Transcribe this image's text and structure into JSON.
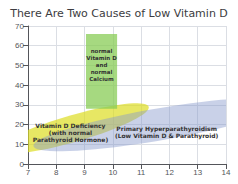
{
  "chart_data": {
    "type": "region",
    "title": "There Are Two Causes of Low Vitamin D",
    "xlim": [
      7,
      14
    ],
    "ylim": [
      0,
      70
    ],
    "xticks": [
      7,
      8,
      9,
      10,
      11,
      12,
      13,
      14
    ],
    "yticks": [
      0,
      10,
      20,
      30,
      40,
      50,
      60,
      70
    ],
    "grid": true,
    "regions": [
      {
        "shape": "ellipse",
        "x": 8.6,
        "y": 18,
        "width": 2.9,
        "height": 26,
        "color": "#dddd22",
        "label": "Vitamin D Deficiency\n(with normal\nParathyroid Hormone)"
      },
      {
        "shape": "ellipse",
        "x": 11.6,
        "y": 20,
        "width": 5.2,
        "height": 28,
        "color": "#8899cc",
        "label": "Primary Hyperparathyroidism\n(Low Vitamin D & Parathyroid)"
      },
      {
        "shape": "rectangle",
        "x": 9.05,
        "y": 28.0,
        "width": 1.1,
        "height": 38.0,
        "color": "#88cc55",
        "label": "normal\nVitamin D\nand\nnormal\nCalcium"
      }
    ]
  }
}
